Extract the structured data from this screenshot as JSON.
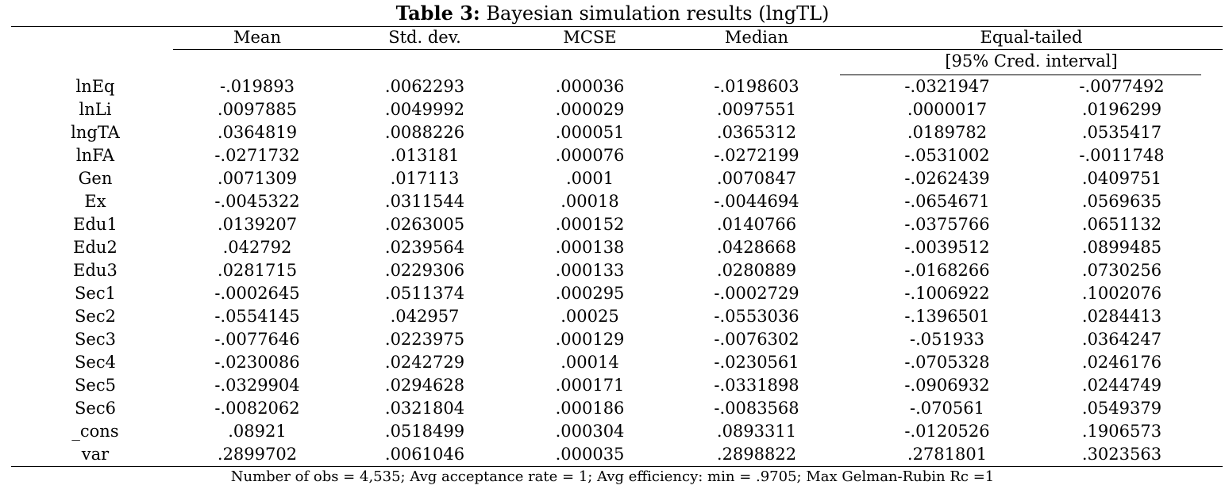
{
  "title": {
    "bold": "Table 3:",
    "rest": " Bayesian simulation results (lngTL)"
  },
  "headers": {
    "mean": "Mean",
    "sd": "Std. dev.",
    "mcse": "MCSE",
    "median": "Median",
    "equal_tailed": "Equal-tailed",
    "cred_interval": "[95% Cred. interval]"
  },
  "rows": [
    {
      "label": "lnEq",
      "mean": "-.019893",
      "sd": ".0062293",
      "mcse": ".000036",
      "median": "-.0198603",
      "lo": "-.0321947",
      "hi": "-.0077492"
    },
    {
      "label": "lnLi",
      "mean": ".0097885",
      "sd": ".0049992",
      "mcse": ".000029",
      "median": ".0097551",
      "lo": ".0000017",
      "hi": ".0196299"
    },
    {
      "label": "lngTA",
      "mean": ".0364819",
      "sd": ".0088226",
      "mcse": ".000051",
      "median": ".0365312",
      "lo": ".0189782",
      "hi": ".0535417"
    },
    {
      "label": "lnFA",
      "mean": "-.0271732",
      "sd": ".013181",
      "mcse": ".000076",
      "median": "-.0272199",
      "lo": "-.0531002",
      "hi": "-.0011748"
    },
    {
      "label": "Gen",
      "mean": ".0071309",
      "sd": ".017113",
      "mcse": ".0001",
      "median": ".0070847",
      "lo": "-.0262439",
      "hi": ".0409751"
    },
    {
      "label": "Ex",
      "mean": "-.0045322",
      "sd": ".0311544",
      "mcse": ".00018",
      "median": "-.0044694",
      "lo": "-.0654671",
      "hi": ".0569635"
    },
    {
      "label": "Edu1",
      "mean": ".0139207",
      "sd": ".0263005",
      "mcse": ".000152",
      "median": ".0140766",
      "lo": "-.0375766",
      "hi": ".0651132"
    },
    {
      "label": "Edu2",
      "mean": ".042792",
      "sd": ".0239564",
      "mcse": ".000138",
      "median": ".0428668",
      "lo": "-.0039512",
      "hi": ".0899485"
    },
    {
      "label": "Edu3",
      "mean": ".0281715",
      "sd": ".0229306",
      "mcse": ".000133",
      "median": ".0280889",
      "lo": "-.0168266",
      "hi": ".0730256"
    },
    {
      "label": "Sec1",
      "mean": "-.0002645",
      "sd": ".0511374",
      "mcse": ".000295",
      "median": "-.0002729",
      "lo": "-.1006922",
      "hi": ".1002076"
    },
    {
      "label": "Sec2",
      "mean": "-.0554145",
      "sd": ".042957",
      "mcse": ".00025",
      "median": "-.0553036",
      "lo": "-.1396501",
      "hi": ".0284413"
    },
    {
      "label": "Sec3",
      "mean": "-.0077646",
      "sd": ".0223975",
      "mcse": ".000129",
      "median": "-.0076302",
      "lo": "-.051933",
      "hi": ".0364247"
    },
    {
      "label": "Sec4",
      "mean": "-.0230086",
      "sd": ".0242729",
      "mcse": ".00014",
      "median": "-.0230561",
      "lo": "-.0705328",
      "hi": ".0246176"
    },
    {
      "label": "Sec5",
      "mean": "-.0329904",
      "sd": ".0294628",
      "mcse": ".000171",
      "median": "-.0331898",
      "lo": "-.0906932",
      "hi": ".0244749"
    },
    {
      "label": "Sec6",
      "mean": "-.0082062",
      "sd": ".0321804",
      "mcse": ".000186",
      "median": "-.0083568",
      "lo": "-.070561",
      "hi": ".0549379"
    },
    {
      "label": "_cons",
      "mean": ".08921",
      "sd": ".0518499",
      "mcse": ".000304",
      "median": ".0893311",
      "lo": "-.0120526",
      "hi": ".1906573"
    },
    {
      "label": "var",
      "mean": ".2899702",
      "sd": ".0061046",
      "mcse": ".000035",
      "median": ".2898822",
      "lo": ".2781801",
      "hi": ".3023563"
    }
  ],
  "footer": "Number of obs = 4,535; Avg acceptance rate = 1; Avg efficiency: min = .9705; Max Gelman-Rubin Rc =1"
}
